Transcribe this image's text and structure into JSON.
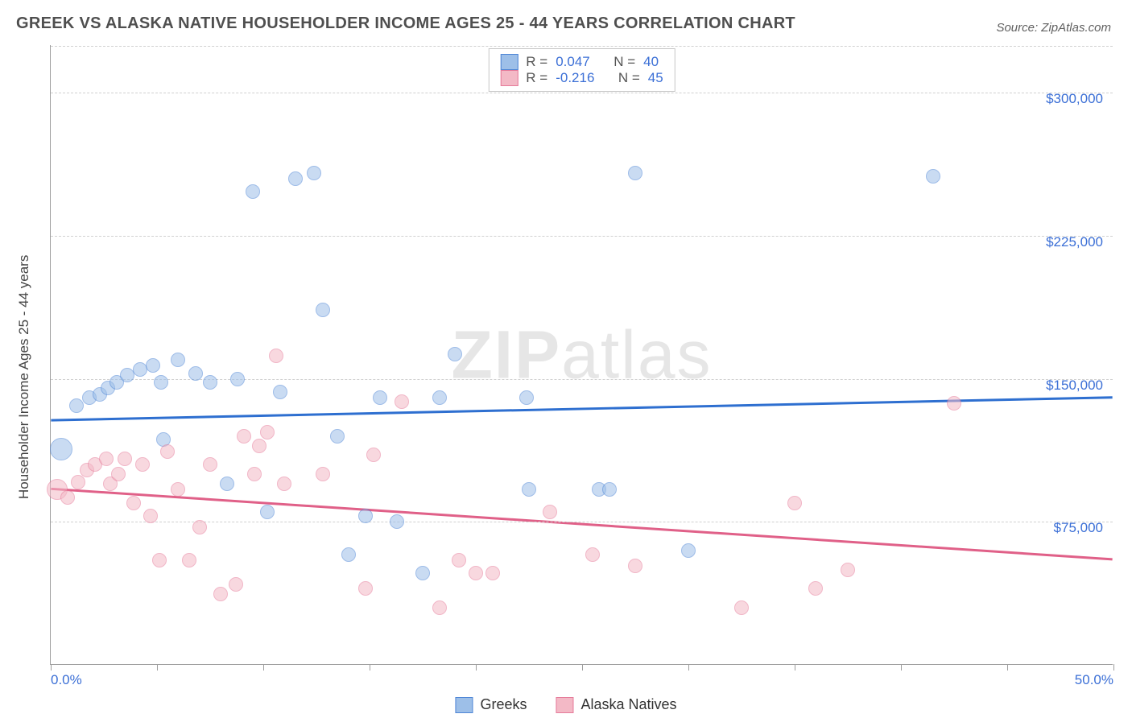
{
  "title": "GREEK VS ALASKA NATIVE HOUSEHOLDER INCOME AGES 25 - 44 YEARS CORRELATION CHART",
  "source": "Source: ZipAtlas.com",
  "watermark_bold": "ZIP",
  "watermark_rest": "atlas",
  "chart": {
    "type": "scatter",
    "background_color": "#ffffff",
    "grid_color": "#d0d0d0",
    "axis_color": "#9e9e9e",
    "text_color": "#4f4f4f",
    "tick_label_color": "#3b6fd6",
    "ylabel": "Householder Income Ages 25 - 44 years",
    "ylabel_fontsize": 17,
    "title_fontsize": 20,
    "xlim": [
      0,
      50
    ],
    "ylim": [
      0,
      325000
    ],
    "x_ticks": [
      0,
      5,
      10,
      15,
      20,
      25,
      30,
      35,
      40,
      45,
      50
    ],
    "x_tick_labels": {
      "0": "0.0%",
      "50": "50.0%"
    },
    "y_gridlines": [
      75000,
      150000,
      225000,
      300000
    ],
    "y_tick_labels": [
      "$75,000",
      "$150,000",
      "$225,000",
      "$300,000"
    ],
    "point_radius": 9,
    "point_opacity": 0.55,
    "trend_line_width": 3,
    "series": [
      {
        "name": "Greeks",
        "fill_color": "#9dbfe8",
        "stroke_color": "#4f86d6",
        "line_color": "#2e6fd0",
        "R": "0.047",
        "N": "40",
        "trend": {
          "x1": 0,
          "y1": 128000,
          "x2": 50,
          "y2": 140000
        },
        "points": [
          {
            "x": 0.5,
            "y": 113000,
            "r": 14
          },
          {
            "x": 1.2,
            "y": 136000
          },
          {
            "x": 1.8,
            "y": 140000
          },
          {
            "x": 2.3,
            "y": 142000
          },
          {
            "x": 2.7,
            "y": 145000
          },
          {
            "x": 3.1,
            "y": 148000
          },
          {
            "x": 3.6,
            "y": 152000
          },
          {
            "x": 4.2,
            "y": 155000
          },
          {
            "x": 4.8,
            "y": 157000
          },
          {
            "x": 5.2,
            "y": 148000
          },
          {
            "x": 5.3,
            "y": 118000
          },
          {
            "x": 6.0,
            "y": 160000
          },
          {
            "x": 6.8,
            "y": 153000
          },
          {
            "x": 7.5,
            "y": 148000
          },
          {
            "x": 8.3,
            "y": 95000
          },
          {
            "x": 8.8,
            "y": 150000
          },
          {
            "x": 9.5,
            "y": 248000
          },
          {
            "x": 10.2,
            "y": 80000
          },
          {
            "x": 10.8,
            "y": 143000
          },
          {
            "x": 11.5,
            "y": 255000
          },
          {
            "x": 12.4,
            "y": 258000
          },
          {
            "x": 12.8,
            "y": 186000
          },
          {
            "x": 13.5,
            "y": 120000
          },
          {
            "x": 14.0,
            "y": 58000
          },
          {
            "x": 14.8,
            "y": 78000
          },
          {
            "x": 15.5,
            "y": 140000
          },
          {
            "x": 16.3,
            "y": 75000
          },
          {
            "x": 17.5,
            "y": 48000
          },
          {
            "x": 18.3,
            "y": 140000
          },
          {
            "x": 19.0,
            "y": 163000
          },
          {
            "x": 22.4,
            "y": 140000
          },
          {
            "x": 22.5,
            "y": 92000
          },
          {
            "x": 25.8,
            "y": 92000
          },
          {
            "x": 26.3,
            "y": 92000
          },
          {
            "x": 27.5,
            "y": 258000
          },
          {
            "x": 30.0,
            "y": 60000
          },
          {
            "x": 41.5,
            "y": 256000
          }
        ]
      },
      {
        "name": "Alaska Natives",
        "fill_color": "#f3b9c6",
        "stroke_color": "#e67b9a",
        "line_color": "#e06088",
        "R": "-0.216",
        "N": "45",
        "trend": {
          "x1": 0,
          "y1": 92000,
          "x2": 50,
          "y2": 55000
        },
        "points": [
          {
            "x": 0.3,
            "y": 92000,
            "r": 13
          },
          {
            "x": 0.8,
            "y": 88000
          },
          {
            "x": 1.3,
            "y": 96000
          },
          {
            "x": 1.7,
            "y": 102000
          },
          {
            "x": 2.1,
            "y": 105000
          },
          {
            "x": 2.6,
            "y": 108000
          },
          {
            "x": 2.8,
            "y": 95000
          },
          {
            "x": 3.2,
            "y": 100000
          },
          {
            "x": 3.5,
            "y": 108000
          },
          {
            "x": 3.9,
            "y": 85000
          },
          {
            "x": 4.3,
            "y": 105000
          },
          {
            "x": 4.7,
            "y": 78000
          },
          {
            "x": 5.1,
            "y": 55000
          },
          {
            "x": 5.5,
            "y": 112000
          },
          {
            "x": 6.0,
            "y": 92000
          },
          {
            "x": 6.5,
            "y": 55000
          },
          {
            "x": 7.0,
            "y": 72000
          },
          {
            "x": 7.5,
            "y": 105000
          },
          {
            "x": 8.0,
            "y": 37000
          },
          {
            "x": 8.7,
            "y": 42000
          },
          {
            "x": 9.1,
            "y": 120000
          },
          {
            "x": 9.6,
            "y": 100000
          },
          {
            "x": 9.8,
            "y": 115000
          },
          {
            "x": 10.2,
            "y": 122000
          },
          {
            "x": 10.6,
            "y": 162000
          },
          {
            "x": 11.0,
            "y": 95000
          },
          {
            "x": 12.8,
            "y": 100000
          },
          {
            "x": 14.8,
            "y": 40000
          },
          {
            "x": 15.2,
            "y": 110000
          },
          {
            "x": 16.5,
            "y": 138000
          },
          {
            "x": 18.3,
            "y": 30000
          },
          {
            "x": 19.2,
            "y": 55000
          },
          {
            "x": 20.0,
            "y": 48000
          },
          {
            "x": 20.8,
            "y": 48000
          },
          {
            "x": 23.5,
            "y": 80000
          },
          {
            "x": 25.5,
            "y": 58000
          },
          {
            "x": 27.5,
            "y": 52000
          },
          {
            "x": 32.5,
            "y": 30000
          },
          {
            "x": 35.0,
            "y": 85000
          },
          {
            "x": 36.0,
            "y": 40000
          },
          {
            "x": 37.5,
            "y": 50000
          },
          {
            "x": 42.5,
            "y": 137000
          }
        ]
      }
    ],
    "legend_top": {
      "R_label": "R  =",
      "N_label": "N  ="
    },
    "legend_bottom": [
      "Greeks",
      "Alaska Natives"
    ]
  }
}
